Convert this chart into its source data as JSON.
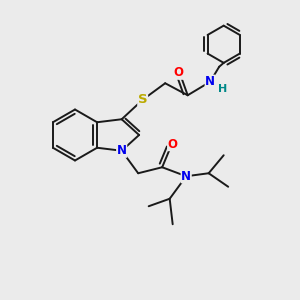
{
  "bg_color": "#ebebeb",
  "bond_color": "#1a1a1a",
  "atom_colors": {
    "O": "#ff0000",
    "N": "#0000ee",
    "S": "#bbaa00",
    "H": "#008888",
    "C": "#1a1a1a"
  },
  "font_size": 8.5,
  "line_width": 1.4
}
